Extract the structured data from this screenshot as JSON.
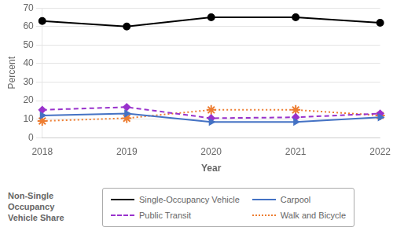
{
  "chart_data": {
    "type": "line",
    "categories": [
      "2018",
      "2019",
      "2020",
      "2021",
      "2022"
    ],
    "series": [
      {
        "name": "Single-Occupancy Vehicle",
        "color": "#000000",
        "values": [
          63,
          60,
          65,
          65,
          62
        ],
        "marker": "circle",
        "line_style": "solid"
      },
      {
        "name": "Carpool",
        "color": "#4472C4",
        "values": [
          12,
          13,
          8.5,
          8.5,
          11
        ],
        "marker": "triangle-right",
        "line_style": "solid"
      },
      {
        "name": "Public Transit",
        "color": "#9932CC",
        "values": [
          15,
          16.5,
          10.5,
          11,
          13
        ],
        "marker": "diamond",
        "line_style": "dashed"
      },
      {
        "name": "Walk and Bicycle",
        "color": "#ED7D31",
        "values": [
          9,
          10.5,
          15,
          15,
          12
        ],
        "marker": "star",
        "line_style": "dotted"
      }
    ],
    "xlabel": "Year",
    "ylabel": "Percent",
    "ylim": [
      0,
      70
    ],
    "yticks": [
      0,
      10,
      20,
      30,
      40,
      50,
      60,
      70
    ],
    "grid": true,
    "legend": "bottom",
    "annotations": [
      "Non-Single\nOccupancy\nVehicle Share"
    ]
  }
}
